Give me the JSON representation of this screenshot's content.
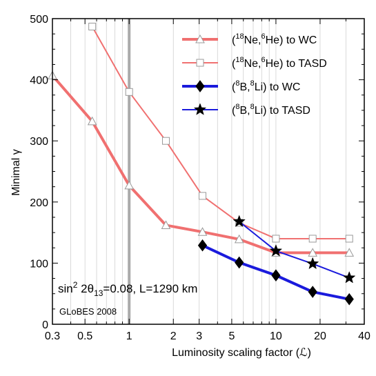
{
  "chart_data": {
    "type": "line",
    "xscale": "log",
    "xlim": [
      0.3,
      40
    ],
    "ylim": [
      0,
      500
    ],
    "xlabel": "Luminosity scaling factor (ℒ)",
    "ylabel": "Minimal γ",
    "xticks": [
      0.3,
      0.5,
      1,
      2,
      3,
      5,
      10,
      20,
      40
    ],
    "xtick_labels": [
      "0.3",
      "0.5",
      "1",
      "2",
      "3",
      "5",
      "10",
      "20",
      "40"
    ],
    "yticks": [
      0,
      100,
      200,
      300,
      400,
      500
    ],
    "ytick_labels": [
      "0",
      "100",
      "200",
      "300",
      "400",
      "500"
    ],
    "grid": "vertical",
    "reference_line_x": 1,
    "legend_position": "top-right",
    "series": [
      {
        "name": "(¹⁸Ne,⁶He) to WC",
        "legend": {
          "pre": "(",
          "sup1": "18",
          "mid1": "Ne,",
          "sup2": "6",
          "mid2": "He) to WC"
        },
        "color": "#f07070",
        "marker": "triangle",
        "line_width": 4,
        "x": [
          0.3,
          0.56,
          1.0,
          1.78,
          3.16,
          5.62,
          10,
          17.8,
          31.6
        ],
        "y": [
          407,
          332,
          227,
          162,
          151,
          139,
          117,
          117,
          117
        ]
      },
      {
        "name": "(¹⁸Ne,⁶He) to TASD",
        "legend": {
          "pre": "(",
          "sup1": "18",
          "mid1": "Ne,",
          "sup2": "6",
          "mid2": "He) to TASD"
        },
        "color": "#f07070",
        "marker": "square",
        "line_width": 2,
        "x": [
          0.56,
          1.0,
          1.78,
          3.16,
          5.62,
          10,
          17.8,
          31.6
        ],
        "y": [
          487,
          380,
          300,
          210,
          166,
          140,
          140,
          140
        ]
      },
      {
        "name": "(⁸B,⁸Li) to WC",
        "legend": {
          "pre": "(",
          "sup1": "8",
          "mid1": "B,",
          "sup2": "8",
          "mid2": "Li) to WC"
        },
        "color": "#1a1adc",
        "marker": "diamond",
        "line_width": 4,
        "x": [
          3.16,
          5.62,
          10,
          17.8,
          31.6
        ],
        "y": [
          129,
          101,
          80,
          53,
          41
        ]
      },
      {
        "name": "(⁸B,⁸Li) to TASD",
        "legend": {
          "pre": "(",
          "sup1": "8",
          "mid1": "B,",
          "sup2": "8",
          "mid2": "Li) to TASD"
        },
        "color": "#1a1adc",
        "marker": "star",
        "line_width": 2,
        "x": [
          5.62,
          10,
          17.8,
          31.6
        ],
        "y": [
          168,
          120,
          99,
          76
        ]
      }
    ],
    "annotations": [
      {
        "kind": "formula",
        "parts": {
          "a": "sin",
          "sup": "2",
          "b": " 2θ",
          "sub": "13",
          "c": "=0.08, L=1290 km"
        }
      },
      {
        "kind": "text",
        "text": "GLoBES 2008"
      }
    ]
  }
}
